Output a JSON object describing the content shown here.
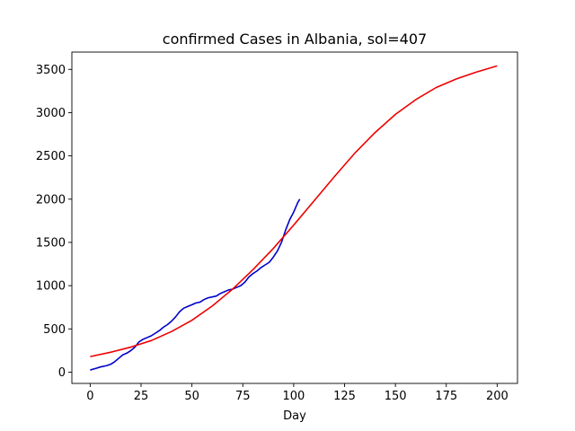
{
  "chart_data": {
    "type": "line",
    "title": "confirmed Cases in Albania, sol=407",
    "xlabel": "Day",
    "ylabel": "",
    "xlim": [
      -9,
      210
    ],
    "ylim": [
      -130,
      3700
    ],
    "xticks": [
      0,
      25,
      50,
      75,
      100,
      125,
      150,
      175,
      200
    ],
    "yticks": [
      0,
      500,
      1000,
      1500,
      2000,
      2500,
      3000,
      3500
    ],
    "grid": false,
    "legend": "none",
    "series": [
      {
        "color": "#0000cc",
        "x": [
          0,
          3,
          5,
          8,
          10,
          12,
          14,
          16,
          18,
          20,
          22,
          24,
          26,
          28,
          30,
          32,
          34,
          36,
          38,
          40,
          42,
          44,
          46,
          48,
          50,
          52,
          54,
          56,
          58,
          60,
          62,
          64,
          66,
          68,
          70,
          72,
          74,
          76,
          78,
          80,
          82,
          84,
          86,
          88,
          90,
          92,
          94,
          96,
          98,
          100,
          102,
          103
        ],
        "y": [
          25,
          45,
          60,
          75,
          90,
          120,
          160,
          200,
          220,
          250,
          290,
          350,
          380,
          400,
          420,
          450,
          480,
          520,
          550,
          590,
          640,
          700,
          740,
          760,
          780,
          800,
          810,
          840,
          860,
          870,
          880,
          910,
          930,
          950,
          960,
          980,
          1000,
          1040,
          1100,
          1140,
          1170,
          1210,
          1240,
          1270,
          1330,
          1400,
          1500,
          1640,
          1760,
          1850,
          1960,
          2000
        ]
      },
      {
        "color": "#ee0000",
        "x": [
          0,
          10,
          20,
          30,
          40,
          50,
          60,
          70,
          80,
          90,
          100,
          110,
          120,
          130,
          140,
          150,
          160,
          170,
          180,
          190,
          200
        ],
        "y": [
          180,
          230,
          290,
          365,
          470,
          600,
          765,
          960,
          1185,
          1430,
          1700,
          1980,
          2260,
          2530,
          2770,
          2980,
          3150,
          3290,
          3390,
          3470,
          3540
        ]
      }
    ]
  }
}
